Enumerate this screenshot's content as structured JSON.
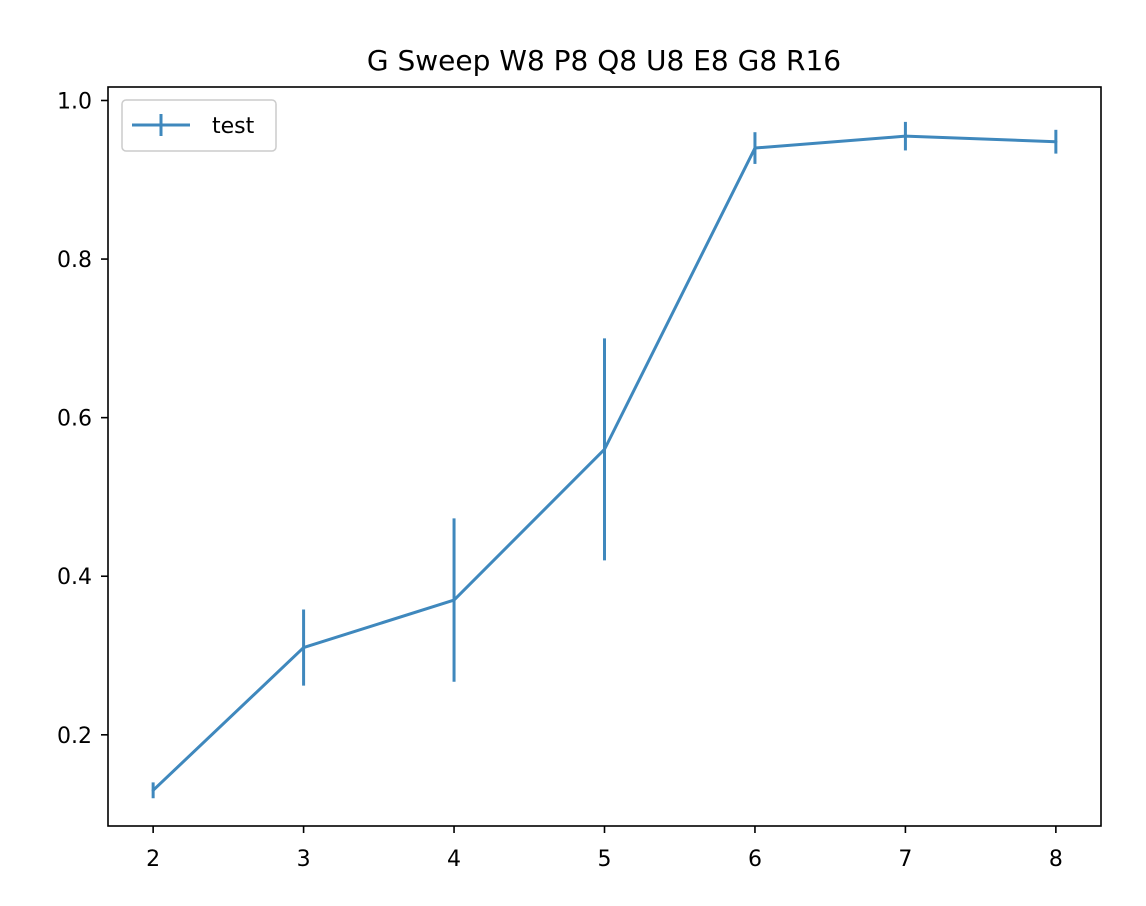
{
  "chart_data": {
    "type": "line",
    "title": "G Sweep W8 P8 Q8 U8 E8 G8 R16",
    "xlabel": "",
    "ylabel": "",
    "x": [
      2,
      3,
      4,
      5,
      6,
      7,
      8
    ],
    "xlim": [
      1.7,
      8.3
    ],
    "ylim": [
      0.085,
      1.017
    ],
    "x_ticks": [
      2,
      3,
      4,
      5,
      6,
      7,
      8
    ],
    "y_ticks": [
      0.2,
      0.4,
      0.6,
      0.8,
      1.0
    ],
    "y_tick_labels": [
      "0.2",
      "0.4",
      "0.6",
      "0.8",
      "1.0"
    ],
    "grid": false,
    "legend_position": "upper-left",
    "series": [
      {
        "name": "test",
        "color": "#3f88bd",
        "values": [
          0.13,
          0.31,
          0.37,
          0.56,
          0.94,
          0.955,
          0.948
        ],
        "errors": [
          0.01,
          0.048,
          0.103,
          0.14,
          0.02,
          0.018,
          0.015
        ]
      }
    ]
  }
}
